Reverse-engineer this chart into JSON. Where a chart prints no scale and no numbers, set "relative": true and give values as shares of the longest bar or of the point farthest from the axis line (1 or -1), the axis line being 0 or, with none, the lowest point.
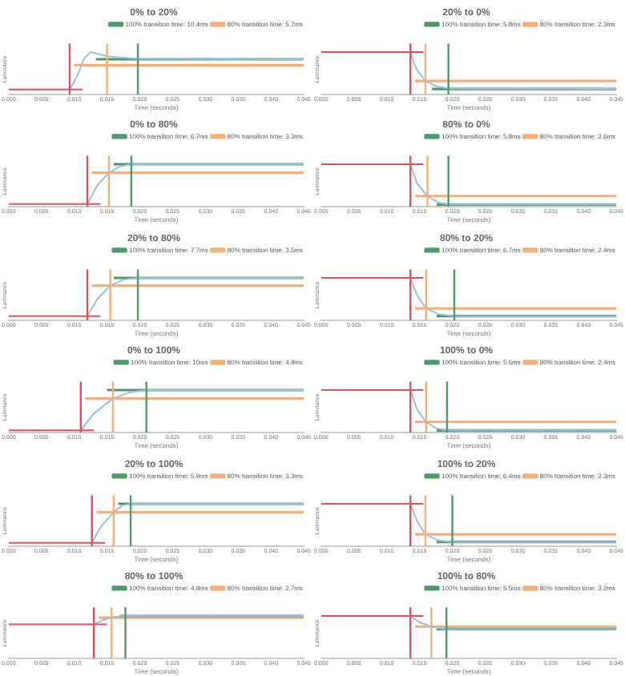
{
  "chart_data": [
    {
      "type": "line",
      "title": "0% to 20%",
      "xlabel": "Time (seconds)",
      "ylabel": "Luminance",
      "relative": true,
      "legend": "top right",
      "tick_labels": "x",
      "marker": "none",
      "xlim": [
        0,
        0.045
      ],
      "xticks": [
        {
          "value": 0,
          "label": "0.000"
        },
        {
          "value": 0.005,
          "label": "0.005"
        },
        {
          "value": 0.01,
          "label": "0.010"
        },
        {
          "value": 0.015,
          "label": "0.015"
        },
        {
          "value": 0.02,
          "label": "0.020"
        },
        {
          "value": 0.025,
          "label": "0.025"
        },
        {
          "value": 0.03,
          "label": "0.030"
        },
        {
          "value": 0.035,
          "label": "0.035"
        },
        {
          "value": 0.04,
          "label": "0.040"
        },
        {
          "value": 0.045,
          "label": "0.045"
        }
      ],
      "ref_lines": [
        {
          "axis": "x",
          "value": 0.0093,
          "color": "#e0505a"
        },
        {
          "axis": "x",
          "value": 0.015,
          "color": "#f5b07a"
        },
        {
          "axis": "x",
          "value": 0.0197,
          "color": "#4a9a6a"
        }
      ],
      "series": [
        {
          "name": "100% transition time: 10.4ms",
          "color": "#4a9a6a",
          "x": [
            0.0133,
            0.045
          ],
          "values": [
            0.83,
            0.83
          ]
        },
        {
          "name": "80% transition time: 5.7ms",
          "color": "#f5b07a",
          "x": [
            0.01,
            0.045
          ],
          "values": [
            0.69,
            0.69
          ]
        },
        {
          "color": "#e0505a",
          "x": [
            0,
            0.0113
          ],
          "values": [
            0.12,
            0.12
          ]
        },
        {
          "color": "#9bbfe0",
          "x": [
            0.0093,
            0.0105,
            0.0115,
            0.0125,
            0.015,
            0.0197,
            0.045
          ],
          "values": [
            0.12,
            0.45,
            0.85,
            1,
            0.9,
            0.84,
            0.83
          ]
        }
      ]
    },
    {
      "type": "line",
      "title": "20% to 0%",
      "xlabel": "Time (seconds)",
      "ylabel": "Luminance",
      "relative": true,
      "legend": "top right",
      "tick_labels": "x",
      "marker": "none",
      "xlim": [
        0,
        0.045
      ],
      "xticks": [
        {
          "value": 0,
          "label": "0.000"
        },
        {
          "value": 0.005,
          "label": "0.005"
        },
        {
          "value": 0.01,
          "label": "0.010"
        },
        {
          "value": 0.015,
          "label": "0.015"
        },
        {
          "value": 0.02,
          "label": "0.020"
        },
        {
          "value": 0.025,
          "label": "0.025"
        },
        {
          "value": 0.03,
          "label": "0.030"
        },
        {
          "value": 0.035,
          "label": "0.035"
        },
        {
          "value": 0.04,
          "label": "0.040"
        },
        {
          "value": 0.045,
          "label": "0.045"
        }
      ],
      "ref_lines": [
        {
          "axis": "x",
          "value": 0.0136,
          "color": "#e0505a"
        },
        {
          "axis": "x",
          "value": 0.0159,
          "color": "#f5b07a"
        },
        {
          "axis": "x",
          "value": 0.0194,
          "color": "#4a9a6a"
        }
      ],
      "series": [
        {
          "name": "100% transition time: 5.8ms",
          "color": "#4a9a6a",
          "x": [
            0.0169,
            0.045
          ],
          "values": [
            0.13,
            0.13
          ]
        },
        {
          "name": "80% transition time: 2.3ms",
          "color": "#f5b07a",
          "x": [
            0.0143,
            0.045
          ],
          "values": [
            0.32,
            0.32
          ]
        },
        {
          "color": "#e0505a",
          "x": [
            0,
            0.0156
          ],
          "values": [
            1,
            1
          ]
        },
        {
          "color": "#9bbfe0",
          "x": [
            0.0136,
            0.0145,
            0.0159,
            0.0175,
            0.0194,
            0.045
          ],
          "values": [
            1,
            0.6,
            0.32,
            0.2,
            0.14,
            0.13
          ]
        }
      ]
    },
    {
      "type": "line",
      "title": "0% to 80%",
      "xlabel": "Time (seconds)",
      "ylabel": "Luminance",
      "relative": true,
      "legend": "top right",
      "tick_labels": "x",
      "marker": "none",
      "xlim": [
        0,
        0.045
      ],
      "xticks": [
        {
          "value": 0,
          "label": "0.000"
        },
        {
          "value": 0.005,
          "label": "0.005"
        },
        {
          "value": 0.01,
          "label": "0.010"
        },
        {
          "value": 0.015,
          "label": "0.015"
        },
        {
          "value": 0.02,
          "label": "0.020"
        },
        {
          "value": 0.025,
          "label": "0.025"
        },
        {
          "value": 0.03,
          "label": "0.030"
        },
        {
          "value": 0.035,
          "label": "0.035"
        },
        {
          "value": 0.04,
          "label": "0.040"
        },
        {
          "value": 0.045,
          "label": "0.045"
        }
      ],
      "ref_lines": [
        {
          "axis": "x",
          "value": 0.012,
          "color": "#e0505a"
        },
        {
          "axis": "x",
          "value": 0.0153,
          "color": "#f5b07a"
        },
        {
          "axis": "x",
          "value": 0.0187,
          "color": "#4a9a6a"
        }
      ],
      "series": [
        {
          "name": "100% transition time: 6.7ms",
          "color": "#4a9a6a",
          "x": [
            0.016,
            0.045
          ],
          "values": [
            1,
            1
          ]
        },
        {
          "name": "80% transition time: 3.3ms",
          "color": "#f5b07a",
          "x": [
            0.0127,
            0.045
          ],
          "values": [
            0.8,
            0.8
          ]
        },
        {
          "color": "#e0505a",
          "x": [
            0,
            0.014
          ],
          "values": [
            0.06,
            0.06
          ]
        },
        {
          "color": "#9bbfe0",
          "x": [
            0.012,
            0.0135,
            0.0153,
            0.017,
            0.0187,
            0.045
          ],
          "values": [
            0.06,
            0.5,
            0.8,
            0.95,
            1,
            1
          ]
        }
      ]
    },
    {
      "type": "line",
      "title": "80% to 0%",
      "xlabel": "Time (seconds)",
      "ylabel": "Luminance",
      "relative": true,
      "legend": "top right",
      "tick_labels": "x",
      "marker": "none",
      "xlim": [
        0,
        0.045
      ],
      "xticks": [
        {
          "value": 0,
          "label": "0.000"
        },
        {
          "value": 0.005,
          "label": "0.005"
        },
        {
          "value": 0.01,
          "label": "0.010"
        },
        {
          "value": 0.015,
          "label": "0.015"
        },
        {
          "value": 0.02,
          "label": "0.020"
        },
        {
          "value": 0.025,
          "label": "0.025"
        },
        {
          "value": 0.03,
          "label": "0.030"
        },
        {
          "value": 0.035,
          "label": "0.035"
        },
        {
          "value": 0.04,
          "label": "0.040"
        },
        {
          "value": 0.045,
          "label": "0.045"
        }
      ],
      "ref_lines": [
        {
          "axis": "x",
          "value": 0.0136,
          "color": "#e0505a"
        },
        {
          "axis": "x",
          "value": 0.0162,
          "color": "#f5b07a"
        },
        {
          "axis": "x",
          "value": 0.0194,
          "color": "#4a9a6a"
        }
      ],
      "series": [
        {
          "name": "100% transition time: 5.8ms",
          "color": "#4a9a6a",
          "x": [
            0.0176,
            0.045
          ],
          "values": [
            0.05,
            0.05
          ]
        },
        {
          "name": "80% transition time: 2.6ms",
          "color": "#f5b07a",
          "x": [
            0.0143,
            0.045
          ],
          "values": [
            0.25,
            0.25
          ]
        },
        {
          "color": "#e0505a",
          "x": [
            0,
            0.0156
          ],
          "values": [
            1,
            1
          ]
        },
        {
          "color": "#9bbfe0",
          "x": [
            0.0136,
            0.0146,
            0.0162,
            0.0178,
            0.0194,
            0.045
          ],
          "values": [
            1,
            0.55,
            0.25,
            0.1,
            0.05,
            0.05
          ]
        }
      ]
    },
    {
      "type": "line",
      "title": "20% to 80%",
      "xlabel": "Time (seconds)",
      "ylabel": "Luminance",
      "relative": true,
      "legend": "top right",
      "tick_labels": "x",
      "marker": "none",
      "xlim": [
        0,
        0.045
      ],
      "xticks": [
        {
          "value": 0,
          "label": "0.000"
        },
        {
          "value": 0.005,
          "label": "0.005"
        },
        {
          "value": 0.01,
          "label": "0.010"
        },
        {
          "value": 0.015,
          "label": "0.015"
        },
        {
          "value": 0.02,
          "label": "0.020"
        },
        {
          "value": 0.025,
          "label": "0.025"
        },
        {
          "value": 0.03,
          "label": "0.030"
        },
        {
          "value": 0.035,
          "label": "0.035"
        },
        {
          "value": 0.04,
          "label": "0.040"
        },
        {
          "value": 0.045,
          "label": "0.045"
        }
      ],
      "ref_lines": [
        {
          "axis": "x",
          "value": 0.012,
          "color": "#e0505a"
        },
        {
          "axis": "x",
          "value": 0.0155,
          "color": "#f5b07a"
        },
        {
          "axis": "x",
          "value": 0.0197,
          "color": "#4a9a6a"
        }
      ],
      "series": [
        {
          "name": "100% transition time: 7.7ms",
          "color": "#4a9a6a",
          "x": [
            0.016,
            0.045
          ],
          "values": [
            1,
            1
          ]
        },
        {
          "name": "80% transition time: 3.5ms",
          "color": "#f5b07a",
          "x": [
            0.0127,
            0.045
          ],
          "values": [
            0.82,
            0.82
          ]
        },
        {
          "color": "#e0505a",
          "x": [
            0,
            0.014
          ],
          "values": [
            0.1,
            0.1
          ]
        },
        {
          "color": "#9bbfe0",
          "x": [
            0.012,
            0.0135,
            0.0155,
            0.0175,
            0.0197,
            0.045
          ],
          "values": [
            0.1,
            0.5,
            0.82,
            0.96,
            1,
            1
          ]
        }
      ]
    },
    {
      "type": "line",
      "title": "80% to 20%",
      "xlabel": "Time (seconds)",
      "ylabel": "Luminance",
      "relative": true,
      "legend": "top right",
      "tick_labels": "x",
      "marker": "none",
      "xlim": [
        0,
        0.045
      ],
      "xticks": [
        {
          "value": 0,
          "label": "0.000"
        },
        {
          "value": 0.005,
          "label": "0.005"
        },
        {
          "value": 0.01,
          "label": "0.010"
        },
        {
          "value": 0.015,
          "label": "0.015"
        },
        {
          "value": 0.02,
          "label": "0.020"
        },
        {
          "value": 0.025,
          "label": "0.025"
        },
        {
          "value": 0.03,
          "label": "0.030"
        },
        {
          "value": 0.035,
          "label": "0.035"
        },
        {
          "value": 0.04,
          "label": "0.040"
        },
        {
          "value": 0.045,
          "label": "0.045"
        }
      ],
      "ref_lines": [
        {
          "axis": "x",
          "value": 0.0136,
          "color": "#e0505a"
        },
        {
          "axis": "x",
          "value": 0.016,
          "color": "#f5b07a"
        },
        {
          "axis": "x",
          "value": 0.0203,
          "color": "#4a9a6a"
        }
      ],
      "series": [
        {
          "name": "100% transition time: 6.7ms",
          "color": "#4a9a6a",
          "x": [
            0.0176,
            0.045
          ],
          "values": [
            0.1,
            0.1
          ]
        },
        {
          "name": "80% transition time: 2.4ms",
          "color": "#f5b07a",
          "x": [
            0.0143,
            0.045
          ],
          "values": [
            0.28,
            0.28
          ]
        },
        {
          "color": "#e0505a",
          "x": [
            0,
            0.0156
          ],
          "values": [
            1,
            1
          ]
        },
        {
          "color": "#9bbfe0",
          "x": [
            0.0136,
            0.0146,
            0.016,
            0.018,
            0.0203,
            0.045
          ],
          "values": [
            1,
            0.6,
            0.28,
            0.14,
            0.1,
            0.1
          ]
        }
      ]
    },
    {
      "type": "line",
      "title": "0% to 100%",
      "xlabel": "Time (seconds)",
      "ylabel": "Luminance",
      "relative": true,
      "legend": "top right",
      "tick_labels": "x",
      "marker": "none",
      "xlim": [
        0,
        0.045
      ],
      "xticks": [
        {
          "value": 0,
          "label": "0.000"
        },
        {
          "value": 0.005,
          "label": "0.005"
        },
        {
          "value": 0.01,
          "label": "0.010"
        },
        {
          "value": 0.015,
          "label": "0.015"
        },
        {
          "value": 0.02,
          "label": "0.020"
        },
        {
          "value": 0.025,
          "label": "0.025"
        },
        {
          "value": 0.03,
          "label": "0.030"
        },
        {
          "value": 0.035,
          "label": "0.035"
        },
        {
          "value": 0.04,
          "label": "0.040"
        },
        {
          "value": 0.045,
          "label": "0.045"
        }
      ],
      "ref_lines": [
        {
          "axis": "x",
          "value": 0.011,
          "color": "#e0505a"
        },
        {
          "axis": "x",
          "value": 0.0159,
          "color": "#f5b07a"
        },
        {
          "axis": "x",
          "value": 0.021,
          "color": "#4a9a6a"
        }
      ],
      "series": [
        {
          "name": "100% transition time: 10ms",
          "color": "#4a9a6a",
          "x": [
            0.015,
            0.045
          ],
          "values": [
            1,
            1
          ]
        },
        {
          "name": "80% transition time: 4.9ms",
          "color": "#f5b07a",
          "x": [
            0.0117,
            0.045
          ],
          "values": [
            0.8,
            0.8
          ]
        },
        {
          "color": "#e0505a",
          "x": [
            0,
            0.013
          ],
          "values": [
            0.05,
            0.05
          ]
        },
        {
          "color": "#9bbfe0",
          "x": [
            0.011,
            0.013,
            0.0159,
            0.0185,
            0.021,
            0.045
          ],
          "values": [
            0.05,
            0.45,
            0.8,
            0.95,
            1,
            1
          ]
        }
      ]
    },
    {
      "type": "line",
      "title": "100% to 0%",
      "xlabel": "Time (seconds)",
      "ylabel": "Luminance",
      "relative": true,
      "legend": "top right",
      "tick_labels": "x",
      "marker": "none",
      "xlim": [
        0,
        0.045
      ],
      "xticks": [
        {
          "value": 0,
          "label": "0.000"
        },
        {
          "value": 0.005,
          "label": "0.005"
        },
        {
          "value": 0.01,
          "label": "0.010"
        },
        {
          "value": 0.015,
          "label": "0.015"
        },
        {
          "value": 0.02,
          "label": "0.020"
        },
        {
          "value": 0.025,
          "label": "0.025"
        },
        {
          "value": 0.03,
          "label": "0.030"
        },
        {
          "value": 0.035,
          "label": "0.035"
        },
        {
          "value": 0.04,
          "label": "0.040"
        },
        {
          "value": 0.045,
          "label": "0.045"
        }
      ],
      "ref_lines": [
        {
          "axis": "x",
          "value": 0.0136,
          "color": "#e0505a"
        },
        {
          "axis": "x",
          "value": 0.016,
          "color": "#f5b07a"
        },
        {
          "axis": "x",
          "value": 0.0192,
          "color": "#4a9a6a"
        }
      ],
      "series": [
        {
          "name": "100% transition time: 5.6ms",
          "color": "#4a9a6a",
          "x": [
            0.0176,
            0.045
          ],
          "values": [
            0.05,
            0.05
          ]
        },
        {
          "name": "80% transition time: 2.4ms",
          "color": "#f5b07a",
          "x": [
            0.0143,
            0.045
          ],
          "values": [
            0.25,
            0.25
          ]
        },
        {
          "color": "#e0505a",
          "x": [
            0,
            0.0156
          ],
          "values": [
            1,
            1
          ]
        },
        {
          "color": "#9bbfe0",
          "x": [
            0.0136,
            0.0146,
            0.016,
            0.0175,
            0.0192,
            0.045
          ],
          "values": [
            1,
            0.55,
            0.25,
            0.1,
            0.05,
            0.05
          ]
        }
      ]
    },
    {
      "type": "line",
      "title": "20% to 100%",
      "xlabel": "Time (seconds)",
      "ylabel": "Luminance",
      "relative": true,
      "legend": "top right",
      "tick_labels": "x",
      "marker": "none",
      "xlim": [
        0,
        0.045
      ],
      "xticks": [
        {
          "value": 0,
          "label": "0.000"
        },
        {
          "value": 0.005,
          "label": "0.005"
        },
        {
          "value": 0.01,
          "label": "0.010"
        },
        {
          "value": 0.015,
          "label": "0.015"
        },
        {
          "value": 0.02,
          "label": "0.020"
        },
        {
          "value": 0.025,
          "label": "0.025"
        },
        {
          "value": 0.03,
          "label": "0.030"
        },
        {
          "value": 0.035,
          "label": "0.035"
        },
        {
          "value": 0.04,
          "label": "0.040"
        },
        {
          "value": 0.045,
          "label": "0.045"
        }
      ],
      "ref_lines": [
        {
          "axis": "x",
          "value": 0.0127,
          "color": "#e0505a"
        },
        {
          "axis": "x",
          "value": 0.016,
          "color": "#f5b07a"
        },
        {
          "axis": "x",
          "value": 0.0186,
          "color": "#4a9a6a"
        }
      ],
      "series": [
        {
          "name": "100% transition time: 5.9ms",
          "color": "#4a9a6a",
          "x": [
            0.0167,
            0.045
          ],
          "values": [
            1,
            1
          ]
        },
        {
          "name": "80% transition time: 3.3ms",
          "color": "#f5b07a",
          "x": [
            0.0134,
            0.045
          ],
          "values": [
            0.8,
            0.8
          ]
        },
        {
          "color": "#e0505a",
          "x": [
            0,
            0.0147
          ],
          "values": [
            0.08,
            0.08
          ]
        },
        {
          "color": "#9bbfe0",
          "x": [
            0.0127,
            0.014,
            0.016,
            0.0173,
            0.0186,
            0.045
          ],
          "values": [
            0.08,
            0.45,
            0.8,
            0.96,
            1,
            1
          ]
        }
      ]
    },
    {
      "type": "line",
      "title": "100% to 20%",
      "xlabel": "Time (seconds)",
      "ylabel": "Luminance",
      "relative": true,
      "legend": "top right",
      "tick_labels": "x",
      "marker": "none",
      "xlim": [
        0,
        0.045
      ],
      "xticks": [
        {
          "value": 0,
          "label": "0.000"
        },
        {
          "value": 0.005,
          "label": "0.005"
        },
        {
          "value": 0.01,
          "label": "0.010"
        },
        {
          "value": 0.015,
          "label": "0.015"
        },
        {
          "value": 0.02,
          "label": "0.020"
        },
        {
          "value": 0.025,
          "label": "0.025"
        },
        {
          "value": 0.03,
          "label": "0.030"
        },
        {
          "value": 0.035,
          "label": "0.035"
        },
        {
          "value": 0.04,
          "label": "0.040"
        },
        {
          "value": 0.045,
          "label": "0.045"
        }
      ],
      "ref_lines": [
        {
          "axis": "x",
          "value": 0.0136,
          "color": "#e0505a"
        },
        {
          "axis": "x",
          "value": 0.0159,
          "color": "#f5b07a"
        },
        {
          "axis": "x",
          "value": 0.02,
          "color": "#4a9a6a"
        }
      ],
      "series": [
        {
          "name": "100% transition time: 6.4ms",
          "color": "#4a9a6a",
          "x": [
            0.0176,
            0.045
          ],
          "values": [
            0.1,
            0.1
          ]
        },
        {
          "name": "80% transition time: 2.3ms",
          "color": "#f5b07a",
          "x": [
            0.0143,
            0.045
          ],
          "values": [
            0.28,
            0.28
          ]
        },
        {
          "color": "#e0505a",
          "x": [
            0,
            0.0156
          ],
          "values": [
            1,
            1
          ]
        },
        {
          "color": "#9bbfe0",
          "x": [
            0.0136,
            0.0146,
            0.0159,
            0.0178,
            0.02,
            0.045
          ],
          "values": [
            1,
            0.6,
            0.28,
            0.14,
            0.1,
            0.1
          ]
        }
      ]
    },
    {
      "type": "line",
      "title": "80% to 100%",
      "xlabel": "Time (seconds)",
      "ylabel": "Luminance",
      "relative": true,
      "legend": "top right",
      "tick_labels": "x",
      "marker": "none",
      "xlim": [
        0,
        0.045
      ],
      "xticks": [
        {
          "value": 0,
          "label": "0.000"
        },
        {
          "value": 0.005,
          "label": "0.005"
        },
        {
          "value": 0.01,
          "label": "0.010"
        },
        {
          "value": 0.015,
          "label": "0.015"
        },
        {
          "value": 0.02,
          "label": "0.020"
        },
        {
          "value": 0.025,
          "label": "0.025"
        },
        {
          "value": 0.03,
          "label": "0.030"
        },
        {
          "value": 0.035,
          "label": "0.035"
        },
        {
          "value": 0.04,
          "label": "0.040"
        },
        {
          "value": 0.045,
          "label": "0.045"
        }
      ],
      "ref_lines": [
        {
          "axis": "x",
          "value": 0.013,
          "color": "#e0505a"
        },
        {
          "axis": "x",
          "value": 0.0157,
          "color": "#f5b07a"
        },
        {
          "axis": "x",
          "value": 0.0178,
          "color": "#4a9a6a"
        }
      ],
      "series": [
        {
          "name": "100% transition time: 4.8ms",
          "color": "#4a9a6a",
          "x": [
            0.017,
            0.045
          ],
          "values": [
            1,
            1
          ]
        },
        {
          "name": "80% transition time: 2.7ms",
          "color": "#f5b07a",
          "x": [
            0.0137,
            0.045
          ],
          "values": [
            0.96,
            0.96
          ]
        },
        {
          "color": "#e0505a",
          "x": [
            0,
            0.015
          ],
          "values": [
            0.8,
            0.8
          ]
        },
        {
          "color": "#9bbfe0",
          "x": [
            0.013,
            0.0143,
            0.0157,
            0.0168,
            0.0178,
            0.045
          ],
          "values": [
            0.8,
            0.9,
            0.96,
            0.99,
            1,
            1
          ]
        }
      ]
    },
    {
      "type": "line",
      "title": "100% to 80%",
      "xlabel": "Time (seconds)",
      "ylabel": "Luminance",
      "relative": true,
      "legend": "top right",
      "tick_labels": "x",
      "marker": "none",
      "xlim": [
        0,
        0.045
      ],
      "xticks": [
        {
          "value": 0,
          "label": "0.000"
        },
        {
          "value": 0.005,
          "label": "0.005"
        },
        {
          "value": 0.01,
          "label": "0.010"
        },
        {
          "value": 0.015,
          "label": "0.015"
        },
        {
          "value": 0.02,
          "label": "0.020"
        },
        {
          "value": 0.025,
          "label": "0.025"
        },
        {
          "value": 0.03,
          "label": "0.030"
        },
        {
          "value": 0.035,
          "label": "0.035"
        },
        {
          "value": 0.04,
          "label": "0.040"
        },
        {
          "value": 0.045,
          "label": "0.045"
        }
      ],
      "ref_lines": [
        {
          "axis": "x",
          "value": 0.0136,
          "color": "#e0505a"
        },
        {
          "axis": "x",
          "value": 0.0168,
          "color": "#f5b07a"
        },
        {
          "axis": "x",
          "value": 0.0191,
          "color": "#4a9a6a"
        }
      ],
      "series": [
        {
          "name": "100% transition time: 5.5ms",
          "color": "#4a9a6a",
          "x": [
            0.0176,
            0.045
          ],
          "values": [
            0.69,
            0.69
          ]
        },
        {
          "name": "80% transition time: 3.2ms",
          "color": "#f5b07a",
          "x": [
            0.0143,
            0.045
          ],
          "values": [
            0.75,
            0.75
          ]
        },
        {
          "color": "#e0505a",
          "x": [
            0,
            0.0156
          ],
          "values": [
            1,
            1
          ]
        },
        {
          "color": "#9bbfe0",
          "x": [
            0.0136,
            0.015,
            0.0168,
            0.018,
            0.0191,
            0.045
          ],
          "values": [
            1,
            0.85,
            0.75,
            0.71,
            0.69,
            0.69
          ]
        }
      ]
    }
  ]
}
